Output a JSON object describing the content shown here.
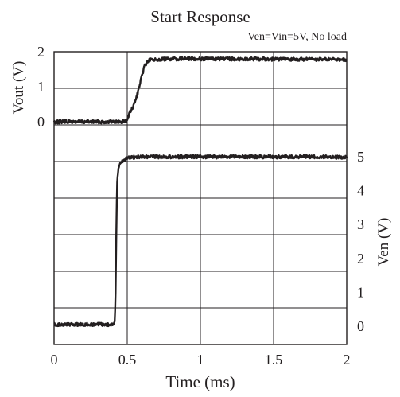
{
  "chart_data": {
    "type": "line",
    "title": "Start Response",
    "subtitle": "Ven=Vin=5V, No load",
    "xlabel": "Time (ms)",
    "ylabel_left": "Vout (V)",
    "ylabel_right": "Ven (V)",
    "xlim": [
      0,
      2
    ],
    "x_ticks": [
      0,
      0.5,
      1,
      1.5,
      2
    ],
    "x_tick_labels": [
      "0",
      "0.5",
      "1",
      "1.5",
      "2"
    ],
    "ylim_left": [
      0,
      2
    ],
    "y_left_ticks": [
      0,
      1,
      2
    ],
    "y_left_tick_labels": [
      "0",
      "1",
      "2"
    ],
    "ylim_right": [
      0,
      5
    ],
    "y_right_ticks": [
      0,
      1,
      2,
      3,
      4,
      5
    ],
    "y_right_tick_labels": [
      "0",
      "1",
      "2",
      "3",
      "4",
      "5"
    ],
    "grid": true,
    "colors": {
      "trace": "#231f20",
      "grid": "#231f20",
      "background": "#ffffff"
    },
    "series": [
      {
        "axis": "left",
        "x": [
          0.0,
          0.1,
          0.2,
          0.3,
          0.45,
          0.49,
          0.5,
          0.52,
          0.54,
          0.56,
          0.58,
          0.6,
          0.62,
          0.65,
          0.7,
          0.8,
          0.9,
          1.0,
          1.2,
          1.4,
          1.6,
          1.8,
          2.0
        ],
        "values": [
          0.0,
          0.0,
          0.0,
          0.0,
          0.0,
          0.01,
          0.08,
          0.28,
          0.42,
          0.65,
          0.95,
          1.3,
          1.62,
          1.76,
          1.78,
          1.79,
          1.8,
          1.8,
          1.79,
          1.79,
          1.78,
          1.78,
          1.77
        ]
      },
      {
        "axis": "right",
        "x": [
          0.0,
          0.1,
          0.2,
          0.3,
          0.4,
          0.415,
          0.42,
          0.425,
          0.43,
          0.44,
          0.46,
          0.5,
          0.6,
          0.8,
          1.0,
          1.2,
          1.4,
          1.6,
          1.8,
          2.0
        ],
        "values": [
          0.05,
          0.05,
          0.05,
          0.05,
          0.05,
          0.1,
          1.0,
          2.5,
          4.2,
          4.7,
          4.85,
          4.98,
          5.0,
          5.0,
          5.0,
          5.0,
          5.0,
          5.0,
          5.0,
          4.98
        ]
      }
    ]
  }
}
